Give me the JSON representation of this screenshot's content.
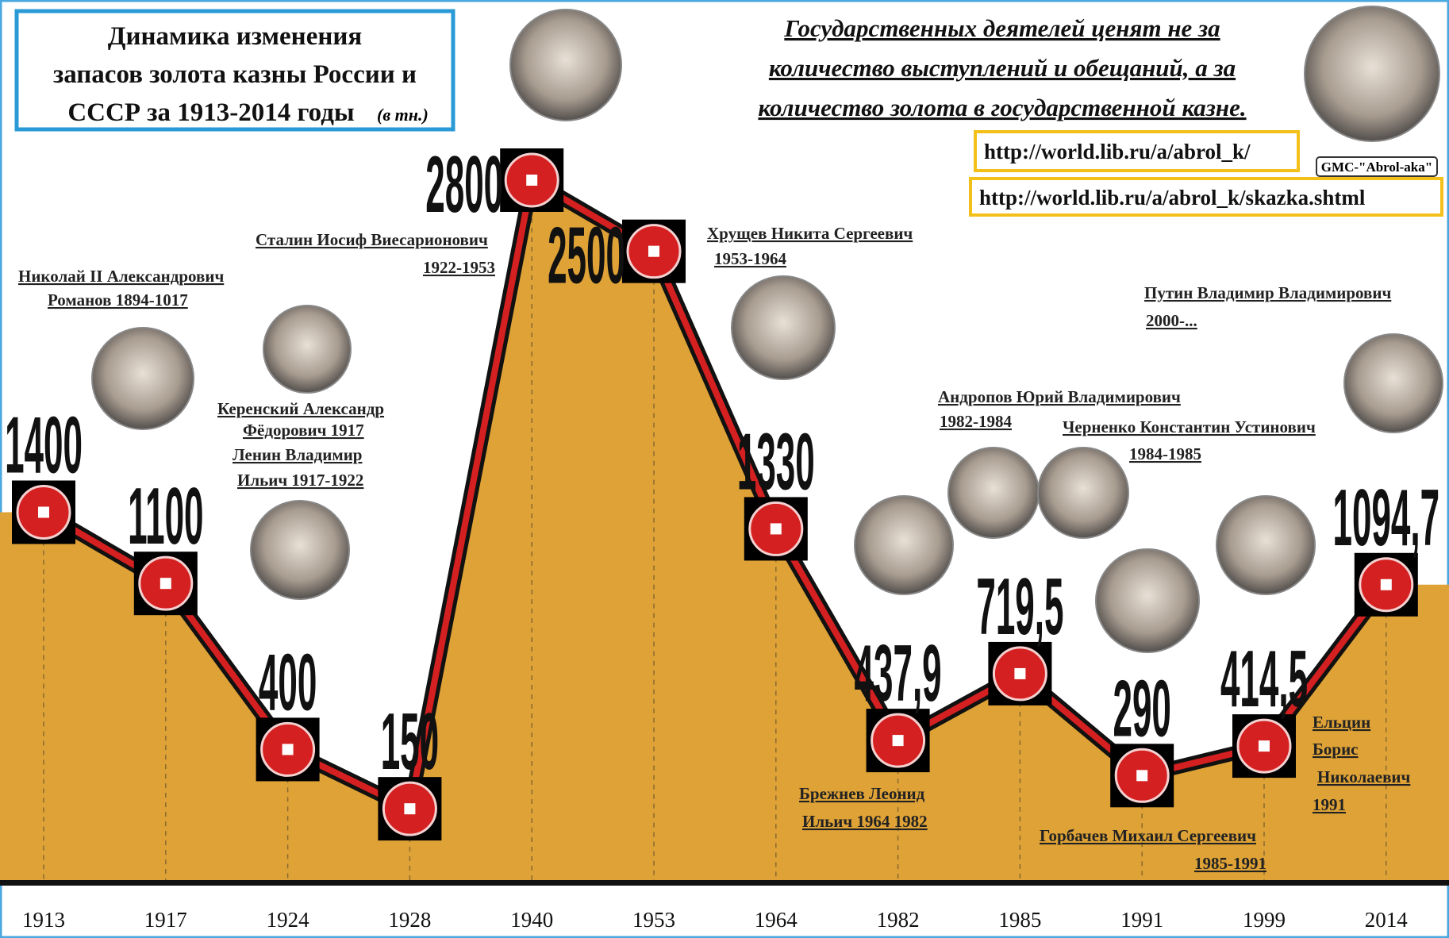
{
  "chart_data": {
    "type": "area",
    "title": [
      "Динамика изменения",
      "запасов золота казны России и",
      "СССР за 1913-2014 годы"
    ],
    "unit_note": "(в тн.)",
    "quote": [
      "Государственных деятелей ценят не за",
      "количество выступлений и обещаний, а за",
      "количество золота в государственной казне."
    ],
    "links": [
      "http://world.lib.ru/a/abrol_k/",
      "http://world.lib.ru/a/abrol_k/skazka.shtml"
    ],
    "author_caption": "GMC-\"Abrol-aka\"",
    "categories": [
      "1913",
      "1917",
      "1924",
      "1928",
      "1940",
      "1953",
      "1964",
      "1982",
      "1985",
      "1991",
      "1999",
      "2014"
    ],
    "values": [
      1400,
      1100,
      400,
      150,
      2800,
      2500,
      1330,
      437.9,
      719.5,
      290,
      414.5,
      1094.7
    ],
    "value_labels": [
      "1400",
      "1100",
      "400",
      "150",
      "2800",
      "2500",
      "1330",
      "437,9",
      "719,5",
      "290",
      "414,5",
      "1094,7"
    ],
    "color": "#dea236",
    "line_color": "#d42020",
    "annotations": [
      {
        "lines": [
          "Николай II Александрович",
          "Романов 1894-1017"
        ]
      },
      {
        "lines": [
          "Керенский Александр",
          "Фёдорович 1917"
        ]
      },
      {
        "lines": [
          "Ленин Владимир",
          "Ильич 1917-1922"
        ]
      },
      {
        "lines": [
          "Сталин Иосиф Виесарионович",
          "1922-1953"
        ]
      },
      {
        "lines": [
          "Хрущев Никита Сергеевич",
          "1953-1964"
        ]
      },
      {
        "lines": [
          "Брежнев  Леонид",
          "Ильич   1964 1982"
        ]
      },
      {
        "lines": [
          "Андропов Юрий Владимирович",
          "1982-1984"
        ]
      },
      {
        "lines": [
          "Черненко Константин Устинович",
          "1984-1985"
        ]
      },
      {
        "lines": [
          "Горбачев Михаил Сергеевич",
          "1985-1991"
        ]
      },
      {
        "lines": [
          "Ельцин",
          "Борис",
          "Николаевич",
          "1991"
        ]
      },
      {
        "lines": [
          "Путин Владимир Владимирович",
          "2000-..."
        ]
      }
    ]
  }
}
